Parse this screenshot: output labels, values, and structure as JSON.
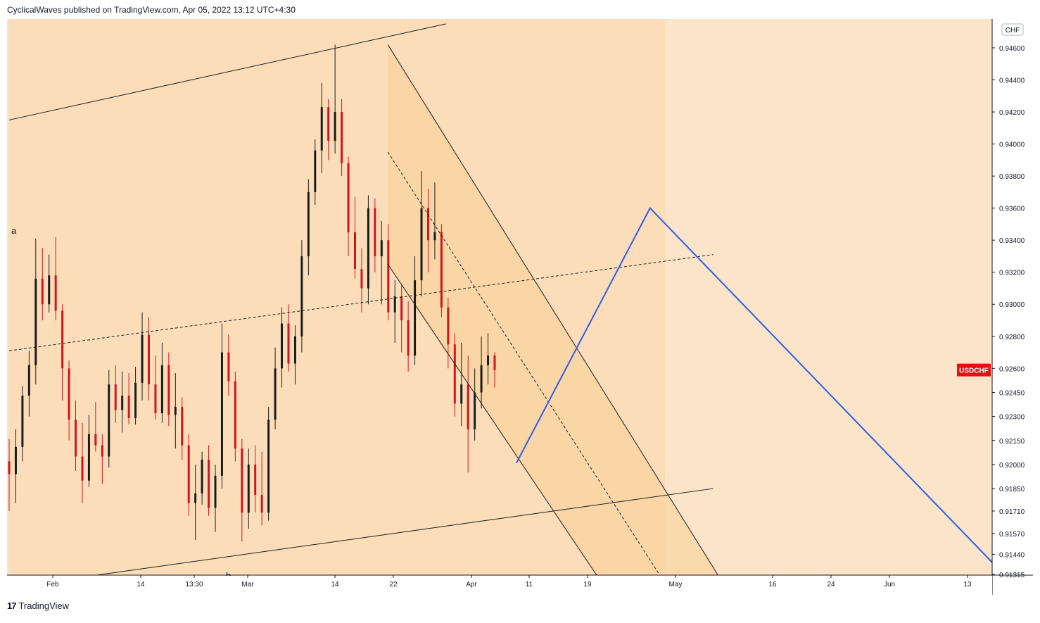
{
  "header": {
    "attribution": "CyclicalWaves published on TradingView.com, Apr 05, 2022 13:12 UTC+4:30"
  },
  "footer": {
    "brand_mark": "17",
    "brand_name": "TradingView"
  },
  "chart_data": {
    "type": "candlestick",
    "symbol": "USDCHF",
    "currency": "CHF",
    "colors": {
      "background": "#fbe4c8",
      "channel_fill": "#fbd9ad",
      "up_candle": "#1b1b1b",
      "down_candle": "#d4121d",
      "projection": "#2f5ce8",
      "symbol_badge": "#e40f14"
    },
    "y_axis": {
      "range": [
        0.9131,
        0.9478
      ],
      "ticks": [
        "0.94600",
        "0.94400",
        "0.94200",
        "0.94000",
        "0.93800",
        "0.93600",
        "0.93400",
        "0.93200",
        "0.93000",
        "0.92800",
        "0.92600",
        "0.92450",
        "0.92300",
        "0.92150",
        "0.92000",
        "0.91850",
        "0.91710",
        "0.91570",
        "0.91440",
        "0.91315"
      ]
    },
    "x_axis": {
      "ticks": [
        "Feb",
        "14",
        "13:30",
        "Mar",
        "14",
        "22",
        "Apr",
        "11",
        "19",
        "May",
        "16",
        "24",
        "Jun",
        "13"
      ]
    },
    "price_label": "USDCHF",
    "current_price": 0.9259,
    "annotations": [
      "a",
      "b"
    ],
    "candles": [
      [
        0.9202,
        0.9216,
        0.9171,
        0.9194
      ],
      [
        0.9194,
        0.9222,
        0.9176,
        0.9211
      ],
      [
        0.9211,
        0.9249,
        0.9202,
        0.9243
      ],
      [
        0.9243,
        0.9271,
        0.923,
        0.9262
      ],
      [
        0.9262,
        0.9341,
        0.925,
        0.9316
      ],
      [
        0.9316,
        0.9335,
        0.929,
        0.93
      ],
      [
        0.93,
        0.9331,
        0.9295,
        0.9318
      ],
      [
        0.9318,
        0.9342,
        0.929,
        0.9296
      ],
      [
        0.9296,
        0.93,
        0.924,
        0.926
      ],
      [
        0.926,
        0.9265,
        0.9215,
        0.9228
      ],
      [
        0.9228,
        0.924,
        0.9196,
        0.9205
      ],
      [
        0.9205,
        0.9226,
        0.9176,
        0.919
      ],
      [
        0.919,
        0.9231,
        0.9186,
        0.9219
      ],
      [
        0.9219,
        0.9239,
        0.9208,
        0.9212
      ],
      [
        0.9212,
        0.9219,
        0.9188,
        0.9205
      ],
      [
        0.9205,
        0.9259,
        0.9198,
        0.925
      ],
      [
        0.925,
        0.9262,
        0.9226,
        0.9234
      ],
      [
        0.9234,
        0.9258,
        0.922,
        0.9243
      ],
      [
        0.9243,
        0.9257,
        0.9225,
        0.9229
      ],
      [
        0.9229,
        0.9261,
        0.9225,
        0.9251
      ],
      [
        0.9251,
        0.9295,
        0.924,
        0.9281
      ],
      [
        0.9281,
        0.9292,
        0.924,
        0.925
      ],
      [
        0.925,
        0.9268,
        0.9228,
        0.9232
      ],
      [
        0.9232,
        0.9276,
        0.9226,
        0.9262
      ],
      [
        0.9262,
        0.927,
        0.9224,
        0.9231
      ],
      [
        0.9231,
        0.9257,
        0.921,
        0.9236
      ],
      [
        0.9236,
        0.9242,
        0.9203,
        0.9212
      ],
      [
        0.9212,
        0.9219,
        0.9168,
        0.9176
      ],
      [
        0.9176,
        0.92,
        0.9153,
        0.9182
      ],
      [
        0.9182,
        0.9208,
        0.9175,
        0.9203
      ],
      [
        0.9203,
        0.9212,
        0.9168,
        0.9173
      ],
      [
        0.9173,
        0.92,
        0.9158,
        0.9193
      ],
      [
        0.9193,
        0.9288,
        0.9185,
        0.927
      ],
      [
        0.927,
        0.9281,
        0.9243,
        0.9252
      ],
      [
        0.9252,
        0.9258,
        0.9202,
        0.921
      ],
      [
        0.921,
        0.9216,
        0.9152,
        0.917
      ],
      [
        0.917,
        0.921,
        0.916,
        0.92
      ],
      [
        0.92,
        0.9212,
        0.917,
        0.9181
      ],
      [
        0.9181,
        0.9208,
        0.9162,
        0.917
      ],
      [
        0.917,
        0.9236,
        0.9165,
        0.9228
      ],
      [
        0.9228,
        0.9273,
        0.9222,
        0.926
      ],
      [
        0.926,
        0.9298,
        0.9248,
        0.9288
      ],
      [
        0.9288,
        0.93,
        0.9258,
        0.9263
      ],
      [
        0.9263,
        0.9287,
        0.925,
        0.928
      ],
      [
        0.928,
        0.934,
        0.927,
        0.933
      ],
      [
        0.933,
        0.9378,
        0.9318,
        0.937
      ],
      [
        0.937,
        0.9403,
        0.9362,
        0.9396
      ],
      [
        0.9396,
        0.9438,
        0.9382,
        0.9423
      ],
      [
        0.9423,
        0.9428,
        0.939,
        0.9402
      ],
      [
        0.9402,
        0.9462,
        0.9394,
        0.942
      ],
      [
        0.942,
        0.9428,
        0.938,
        0.9388
      ],
      [
        0.9388,
        0.9392,
        0.933,
        0.9345
      ],
      [
        0.9345,
        0.9367,
        0.9316,
        0.9322
      ],
      [
        0.9322,
        0.9335,
        0.9295,
        0.931
      ],
      [
        0.931,
        0.9368,
        0.93,
        0.936
      ],
      [
        0.936,
        0.9366,
        0.932,
        0.933
      ],
      [
        0.933,
        0.9352,
        0.93,
        0.934
      ],
      [
        0.934,
        0.935,
        0.929,
        0.9295
      ],
      [
        0.9295,
        0.9315,
        0.9276,
        0.9305
      ],
      [
        0.9305,
        0.9312,
        0.927,
        0.929
      ],
      [
        0.929,
        0.9302,
        0.9258,
        0.9268
      ],
      [
        0.9268,
        0.933,
        0.9262,
        0.9315
      ],
      [
        0.9315,
        0.9383,
        0.9305,
        0.936
      ],
      [
        0.936,
        0.9372,
        0.932,
        0.934
      ],
      [
        0.934,
        0.9376,
        0.9328,
        0.9345
      ],
      [
        0.9345,
        0.935,
        0.9292,
        0.9298
      ],
      [
        0.9298,
        0.9304,
        0.926,
        0.9275
      ],
      [
        0.9275,
        0.9282,
        0.923,
        0.9238
      ],
      [
        0.9238,
        0.9276,
        0.9224,
        0.925
      ],
      [
        0.925,
        0.9268,
        0.9195,
        0.9222
      ],
      [
        0.9222,
        0.926,
        0.9215,
        0.9245
      ],
      [
        0.9245,
        0.928,
        0.9235,
        0.9262
      ],
      [
        0.9262,
        0.9282,
        0.925,
        0.9268
      ],
      [
        0.9268,
        0.927,
        0.9248,
        0.9259
      ]
    ],
    "drawings": {
      "wide_channel_upper": [
        [
          0.0,
          0.9415
        ],
        [
          0.9,
          0.9475
        ]
      ],
      "wide_channel_mid": [
        [
          0.0,
          0.9271
        ],
        [
          1.45,
          0.9331
        ]
      ],
      "wide_channel_lower": [
        [
          0.18,
          0.9131
        ],
        [
          1.45,
          0.9185
        ]
      ],
      "down_channel_upper": [
        [
          0.78,
          0.9462
        ],
        [
          1.46,
          0.9131
        ]
      ],
      "down_channel_mid": [
        [
          0.78,
          0.9395
        ],
        [
          1.34,
          0.9131
        ]
      ],
      "down_channel_lower": [
        [
          0.78,
          0.9325
        ],
        [
          1.21,
          0.9131
        ]
      ],
      "projection": [
        [
          1.045,
          0.9201
        ],
        [
          1.32,
          0.936
        ],
        [
          2.05,
          0.9131
        ]
      ]
    }
  }
}
